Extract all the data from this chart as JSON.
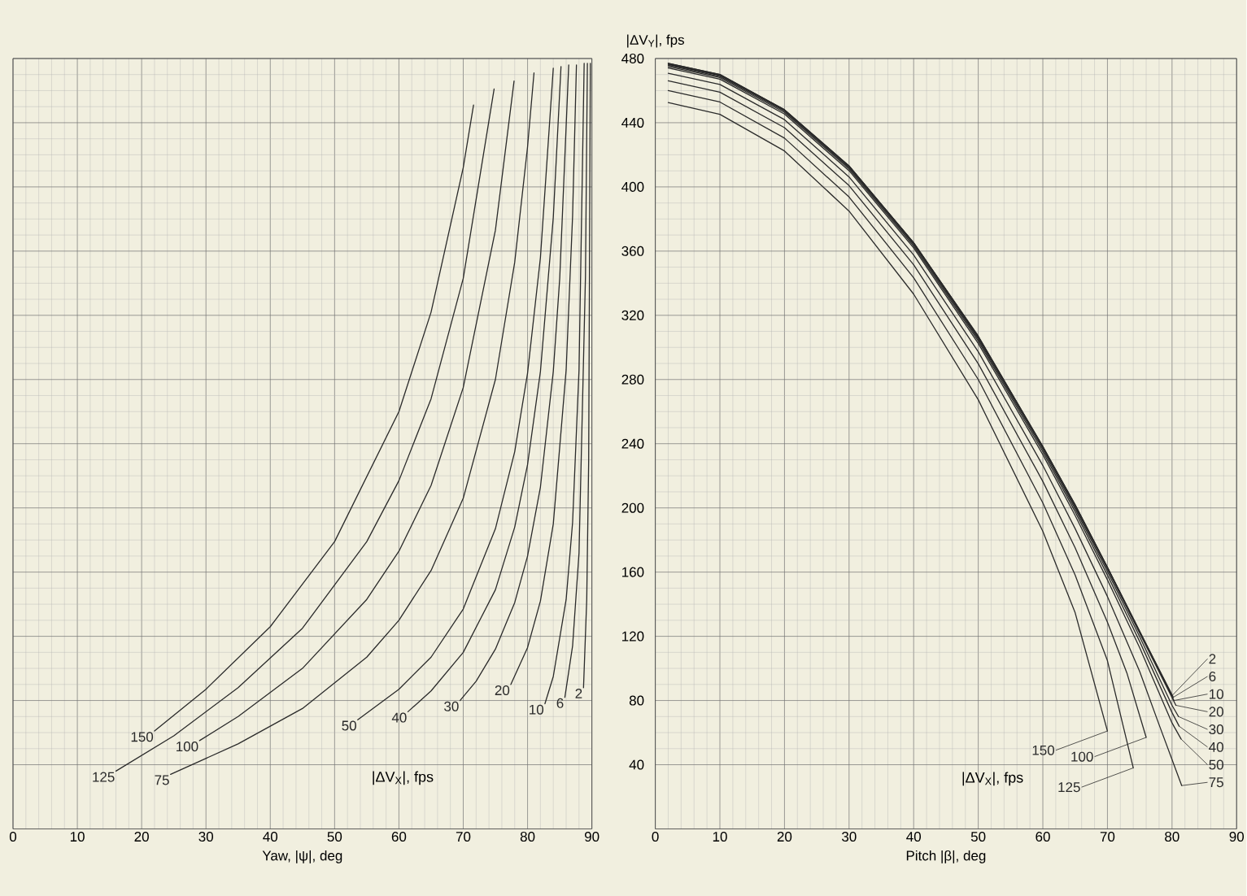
{
  "chart_data": [
    {
      "type": "line",
      "xlabel": "Yaw, |ψ|, deg",
      "legend_title": "|ΔV$_{X}$|, fps",
      "xlim": [
        0,
        90
      ],
      "ylim": [
        0,
        480
      ],
      "xticks": [
        0,
        10,
        20,
        30,
        40,
        50,
        60,
        70,
        80,
        90
      ],
      "yticks": [
        40,
        80,
        120,
        160,
        200,
        240,
        280,
        320,
        360,
        400,
        440,
        480
      ],
      "grid": true,
      "tick_labels": "x",
      "series": [
        {
          "name": "150",
          "color": "#2a2a2a",
          "x": [
            22,
            30,
            40,
            50,
            60,
            65,
            70,
            71.6
          ],
          "values": [
            61,
            87,
            126,
            179,
            260,
            322,
            412,
            451
          ]
        },
        {
          "name": "125",
          "color": "#2a2a2a",
          "x": [
            16,
            25,
            35,
            45,
            55,
            60,
            65,
            70,
            74.8
          ],
          "values": [
            36,
            58,
            88,
            125,
            179,
            217,
            268,
            343,
            461
          ]
        },
        {
          "name": "100",
          "color": "#2a2a2a",
          "x": [
            29,
            35,
            45,
            55,
            60,
            65,
            70,
            75,
            77.9
          ],
          "values": [
            55,
            70,
            100,
            143,
            173,
            214,
            275,
            373,
            466
          ]
        },
        {
          "name": "75",
          "color": "#2a2a2a",
          "x": [
            24.5,
            35,
            45,
            55,
            60,
            65,
            70,
            75,
            78,
            80,
            81
          ],
          "values": [
            34,
            53,
            75,
            107,
            130,
            161,
            206,
            280,
            353,
            425,
            471
          ]
        },
        {
          "name": "50",
          "color": "#2a2a2a",
          "x": [
            53.6,
            60,
            65,
            70,
            75,
            78,
            80,
            82,
            84
          ],
          "values": [
            68,
            87,
            107,
            137,
            187,
            235,
            284,
            356,
            474
          ]
        },
        {
          "name": "40",
          "color": "#2a2a2a",
          "x": [
            61.4,
            65,
            70,
            75,
            78,
            80,
            82,
            84,
            85.2
          ],
          "values": [
            73,
            86,
            110,
            149,
            188,
            227,
            285,
            381,
            475
          ]
        },
        {
          "name": "30",
          "color": "#2a2a2a",
          "x": [
            69.5,
            72,
            75,
            78,
            80,
            82,
            84,
            85,
            86.4
          ],
          "values": [
            80,
            92,
            112,
            141,
            170,
            213,
            285,
            343,
            476
          ]
        },
        {
          "name": "20",
          "color": "#2a2a2a",
          "x": [
            77.4,
            80,
            82,
            84,
            86,
            87,
            87.6
          ],
          "values": [
            90,
            113,
            142,
            190,
            286,
            382,
            476
          ]
        },
        {
          "name": "10",
          "color": "#2a2a2a",
          "x": [
            82.7,
            84,
            86,
            87,
            88,
            88.8
          ],
          "values": [
            78,
            95,
            143,
            191,
            286,
            477
          ]
        },
        {
          "name": "6",
          "color": "#2a2a2a",
          "x": [
            85.8,
            87,
            88,
            89,
            89.3
          ],
          "values": [
            82,
            114,
            172,
            344,
            477
          ]
        },
        {
          "name": "2",
          "color": "#2a2a2a",
          "x": [
            88.7,
            89.2,
            89.5,
            89.76
          ],
          "values": [
            88,
            143,
            229,
            477
          ]
        }
      ]
    },
    {
      "type": "line",
      "xlabel": "Pitch |β|, deg",
      "ylabel": "|ΔV$_{Y}$|, fps",
      "legend_title": "|ΔV$_{X}$|, fps",
      "xlim": [
        0,
        90
      ],
      "ylim": [
        0,
        480
      ],
      "xticks": [
        0,
        10,
        20,
        30,
        40,
        50,
        60,
        70,
        80,
        90
      ],
      "yticks": [
        40,
        80,
        120,
        160,
        200,
        240,
        280,
        320,
        360,
        400,
        440,
        480
      ],
      "grid": true,
      "legend": "right",
      "series": [
        {
          "name": "2",
          "color": "#2a2a2a",
          "x": [
            2,
            10,
            20,
            30,
            40,
            50,
            60,
            65,
            70,
            75,
            80
          ],
          "values": [
            477,
            470,
            448,
            413,
            365,
            307,
            238,
            202,
            163,
            123,
            83
          ]
        },
        {
          "name": "6",
          "color": "#2a2a2a",
          "x": [
            2,
            10,
            20,
            30,
            40,
            50,
            60,
            65,
            70,
            75,
            80.2
          ],
          "values": [
            477,
            470,
            448,
            413,
            365,
            307,
            238,
            202,
            163,
            123,
            82
          ]
        },
        {
          "name": "10",
          "color": "#2a2a2a",
          "x": [
            2,
            10,
            20,
            30,
            40,
            50,
            60,
            65,
            70,
            75,
            80.3
          ],
          "values": [
            476.6,
            469.7,
            448.1,
            413,
            365.3,
            306.4,
            238.3,
            201.4,
            162.8,
            123,
            80
          ]
        },
        {
          "name": "20",
          "color": "#2a2a2a",
          "x": [
            2,
            10,
            20,
            30,
            40,
            50,
            60,
            65,
            70,
            75,
            80.6
          ],
          "values": [
            476.3,
            469.4,
            447.7,
            412.6,
            364.9,
            305.9,
            237.7,
            200.6,
            161.9,
            121.8,
            77
          ]
        },
        {
          "name": "30",
          "color": "#2a2a2a",
          "x": [
            2,
            10,
            20,
            30,
            40,
            50,
            60,
            65,
            70,
            75,
            80,
            81
          ],
          "values": [
            475.8,
            468.8,
            447.2,
            412,
            364.2,
            305.1,
            236.6,
            199.4,
            160.3,
            119.7,
            77,
            70
          ]
        },
        {
          "name": "40",
          "color": "#2a2a2a",
          "x": [
            2,
            10,
            20,
            30,
            40,
            50,
            60,
            65,
            70,
            75,
            80,
            81.1
          ],
          "values": [
            475,
            468.1,
            446.4,
            411.2,
            363.2,
            304,
            235.1,
            197.6,
            158.1,
            116.7,
            72.5,
            64
          ]
        },
        {
          "name": "50",
          "color": "#2a2a2a",
          "x": [
            2,
            10,
            20,
            30,
            40,
            50,
            60,
            65,
            70,
            75,
            80,
            81.4
          ],
          "values": [
            474.1,
            467.1,
            445.4,
            410.1,
            362,
            302.5,
            233.2,
            195.3,
            155.2,
            112.8,
            66,
            56
          ]
        },
        {
          "name": "75",
          "color": "#2a2a2a",
          "x": [
            2,
            10,
            20,
            30,
            40,
            50,
            60,
            65,
            70,
            75,
            78,
            81.5
          ],
          "values": [
            470.8,
            463.8,
            441.9,
            406.2,
            357.6,
            297.3,
            226.4,
            187.1,
            144.8,
            98,
            64.9,
            27
          ]
        },
        {
          "name": "100",
          "color": "#2a2a2a",
          "x": [
            2,
            10,
            20,
            30,
            40,
            50,
            60,
            65,
            70,
            73,
            76
          ],
          "values": [
            466.1,
            459,
            436.9,
            400.8,
            351.5,
            289.8,
            216.5,
            175.1,
            128.8,
            97.3,
            57
          ]
        },
        {
          "name": "125",
          "color": "#2a2a2a",
          "x": [
            2,
            10,
            20,
            30,
            40,
            50,
            60,
            65,
            70,
            74
          ],
          "values": [
            460,
            452.9,
            430.4,
            393.7,
            343.4,
            280,
            203.1,
            158.2,
            104.8,
            38
          ]
        },
        {
          "name": "150",
          "color": "#2a2a2a",
          "x": [
            2,
            10,
            20,
            30,
            40,
            50,
            60,
            65,
            70
          ],
          "values": [
            452.5,
            445.2,
            422.4,
            384.9,
            333.2,
            267.4,
            185.4,
            134.7,
            61
          ]
        }
      ]
    }
  ]
}
